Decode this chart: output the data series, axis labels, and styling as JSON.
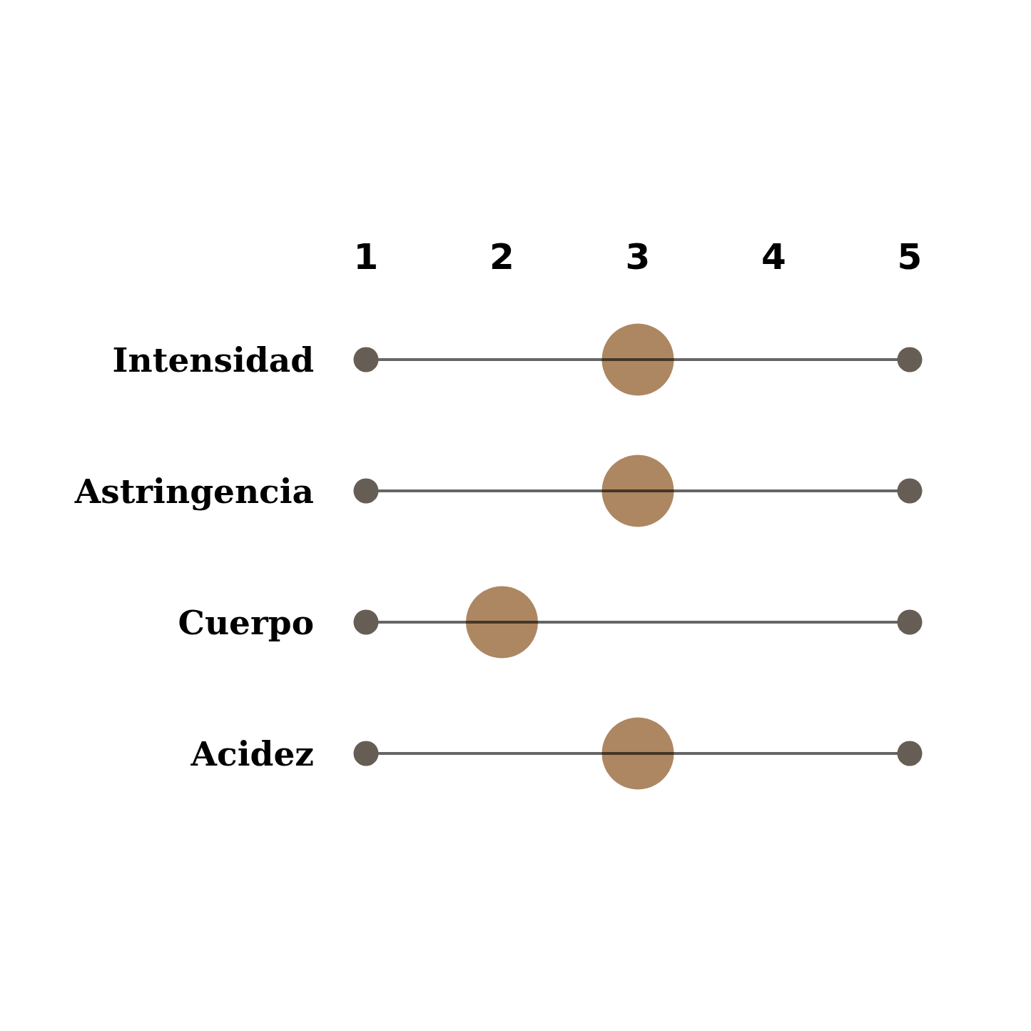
{
  "chart_data": {
    "type": "scatter",
    "orientation": "horizontal",
    "categories": [
      "Intensidad",
      "Astringencia",
      "Cuerpo",
      "Acidez"
    ],
    "xlim": [
      1,
      5
    ],
    "xticks": [
      1,
      2,
      3,
      4,
      5
    ],
    "grid": "y",
    "marker": "circle",
    "series": [
      {
        "color": "#ad8762",
        "values": [
          3,
          3,
          2,
          3
        ]
      },
      {
        "color": "#665e55",
        "values": [
          1,
          1,
          1,
          1
        ]
      },
      {
        "color": "#665e55",
        "values": [
          5,
          5,
          5,
          5
        ]
      }
    ]
  }
}
